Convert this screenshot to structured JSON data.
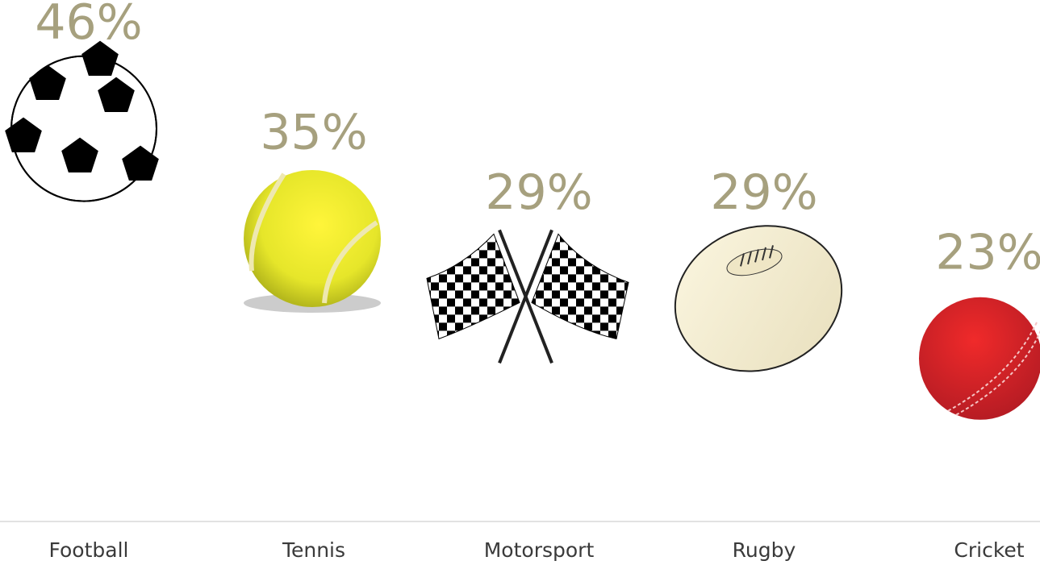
{
  "chart_data": {
    "type": "pictograph",
    "categories": [
      "Football",
      "Tennis",
      "Motorsport",
      "Rugby",
      "Cricket"
    ],
    "values": [
      46,
      35,
      29,
      29,
      23
    ],
    "value_labels": [
      "46%",
      "35%",
      "29%",
      "29%",
      "23%"
    ],
    "color": "#a6a07e"
  }
}
